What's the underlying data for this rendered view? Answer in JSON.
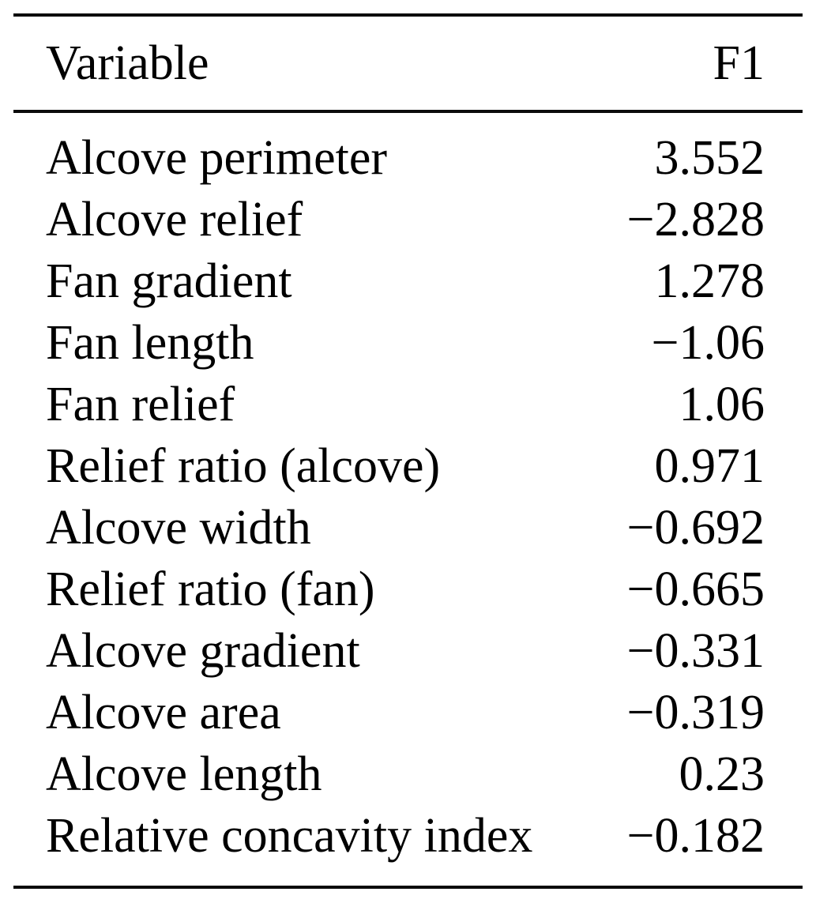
{
  "page": {
    "background_color": "#ffffff",
    "text_color": "#000000",
    "rule_color": "#0b0b0b"
  },
  "table": {
    "columns": [
      {
        "label": "Variable"
      },
      {
        "label": "F1"
      }
    ],
    "rows": [
      {
        "variable": "Alcove perimeter",
        "f1": "3.552"
      },
      {
        "variable": "Alcove relief",
        "f1": "−2.828"
      },
      {
        "variable": "Fan gradient",
        "f1": "1.278"
      },
      {
        "variable": "Fan length",
        "f1": "−1.06"
      },
      {
        "variable": "Fan relief",
        "f1": "1.06"
      },
      {
        "variable": "Relief ratio (alcove)",
        "f1": "0.971"
      },
      {
        "variable": "Alcove width",
        "f1": "−0.692"
      },
      {
        "variable": "Relief ratio (fan)",
        "f1": "−0.665"
      },
      {
        "variable": "Alcove gradient",
        "f1": "−0.331"
      },
      {
        "variable": "Alcove area",
        "f1": "−0.319"
      },
      {
        "variable": "Alcove length",
        "f1": "0.23"
      },
      {
        "variable": "Relative concavity index",
        "f1": "−0.182"
      }
    ]
  },
  "chart_data": {
    "type": "table",
    "title": "",
    "columns": [
      "Variable",
      "F1"
    ],
    "categories": [
      "Alcove perimeter",
      "Alcove relief",
      "Fan gradient",
      "Fan length",
      "Fan relief",
      "Relief ratio (alcove)",
      "Alcove width",
      "Relief ratio (fan)",
      "Alcove gradient",
      "Alcove area",
      "Alcove length",
      "Relative concavity index"
    ],
    "values": [
      3.552,
      -2.828,
      1.278,
      -1.06,
      1.06,
      0.971,
      -0.692,
      -0.665,
      -0.331,
      -0.319,
      0.23,
      -0.182
    ]
  }
}
